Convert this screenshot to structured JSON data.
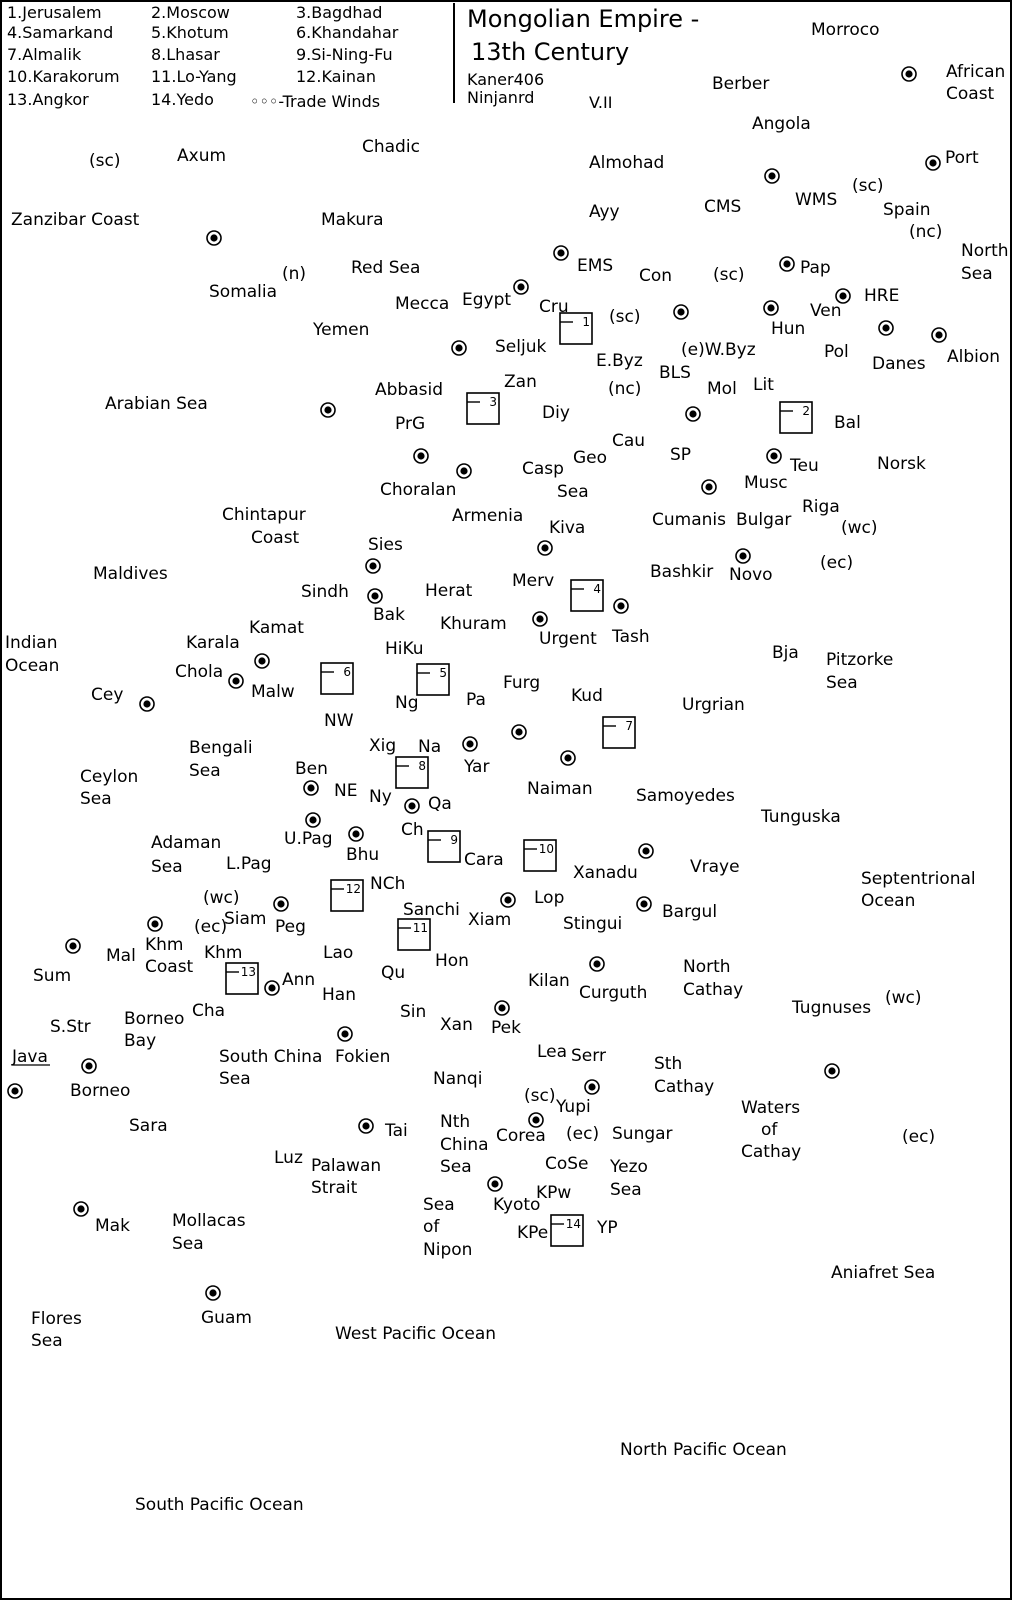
{
  "title": {
    "line1": "Mongolian Empire -",
    "line2": "13th Century"
  },
  "authors": [
    "Kaner406",
    "Ninjanrd"
  ],
  "version": "V.II",
  "legend": [
    "1.Jerusalem",
    "2.Moscow",
    "3.Bagdhad",
    "4.Samarkand",
    "5.Khotum",
    "6.Khandahar",
    "7.Almalik",
    "8.Lhasar",
    "9.Si-Ning-Fu",
    "10.Karakorum",
    "11.Lo-Yang",
    "12.Kainan",
    "13.Angkor",
    "14.Yedo",
    "◦◦◦-Trade Winds"
  ],
  "labels": [
    "Morroco",
    "African",
    "Coast",
    "Berber",
    "Angola",
    "Port",
    "(sc)",
    "Spain",
    "(nc)",
    "North",
    "Sea",
    "WMS",
    "CMS",
    "Almohad",
    "Ayy",
    "(sc)",
    "Axum",
    "Chadic",
    "Zanzibar Coast",
    "Makura",
    "Red Sea",
    "Somalia",
    "(n)",
    "Mecca",
    "Egypt",
    "EMS",
    "Con",
    "(sc)",
    "Pap",
    "HRE",
    "Ven",
    "Cru",
    "(sc)",
    "Hun",
    "Albion",
    "Danes",
    "Yemen",
    "Seljuk",
    "E.Byz",
    "(e)W.Byz",
    "BLS",
    "Pol",
    "Lit",
    "Mol",
    "(nc)",
    "Zan",
    "Abbasid",
    "Arabian Sea",
    "PrG",
    "Diy",
    "Bal",
    "Cau",
    "Geo",
    "Casp",
    "Sea",
    "SP",
    "Teu",
    "Norsk",
    "Musc",
    "Choralan",
    "Armenia",
    "Cumanis",
    "Bulgar",
    "Riga",
    "(wc)",
    "Chintapur",
    "Coast",
    "Sies",
    "Kiva",
    "Bashkir",
    "Novo",
    "(ec)",
    "Maldives",
    "Sindh",
    "Herat",
    "Merv",
    "Bak",
    "Khuram",
    "Urgent",
    "Tash",
    "Kamat",
    "Indian",
    "Ocean",
    "Karala",
    "HiKu",
    "Bja",
    "Pitzorke",
    "Sea",
    "Chola",
    "Malw",
    "Furg",
    "Kud",
    "Cey",
    "Ng",
    "Pa",
    "Urgrian",
    "NW",
    "Xig",
    "Na",
    "Bengali",
    "Sea",
    "Yar",
    "Ben",
    "Ceylon",
    "Sea",
    "NE",
    "Ny",
    "Qa",
    "Naiman",
    "Samoyedes",
    "Tunguska",
    "Ch",
    "Adaman",
    "Sea",
    "U.Pag",
    "Bhu",
    "Cara",
    "L.Pag",
    "Xanadu",
    "Vraye",
    "Septentrional",
    "Ocean",
    "NCh",
    "(wc)",
    "Siam",
    "Peg",
    "Sanchi",
    "Lop",
    "Xiam",
    "Bargul",
    "(ec)",
    "Stingui",
    "Khm",
    "Coast",
    "Mal",
    "Khm",
    "Lao",
    "Hon",
    "North",
    "Cathay",
    "Sum",
    "Qu",
    "Kilan",
    "Curguth",
    "Ann",
    "Han",
    "Tugnuses",
    "(wc)",
    "Cha",
    "Sin",
    "Borneo",
    "Bay",
    "S.Str",
    "Xan",
    "Pek",
    "Java",
    "South China",
    "Sea",
    "Fokien",
    "Lea",
    "Serr",
    "Sth",
    "Cathay",
    "Nanqi",
    "Borneo",
    "(sc)",
    "Yupi",
    "Waters",
    "of",
    "Cathay",
    "Sara",
    "Tai",
    "Nth",
    "China",
    "Sea",
    "Corea",
    "(ec)",
    "Sungar",
    "(ec)",
    "Luz",
    "Palawan",
    "Strait",
    "CoSe",
    "Yezo",
    "Sea",
    "Kyoto",
    "KPw",
    "Sea",
    "of",
    "Nipon",
    "Mak",
    "Mollacas",
    "Sea",
    "KPe",
    "YP",
    "Aniafret Sea",
    "Guam",
    "Flores",
    "Sea",
    "West Pacific Ocean",
    "North Pacific Ocean",
    "South Pacific Ocean"
  ],
  "boxes": [
    "1",
    "2",
    "3",
    "4",
    "5",
    "6",
    "7",
    "8",
    "9",
    "10",
    "11",
    "12",
    "13",
    "14"
  ]
}
